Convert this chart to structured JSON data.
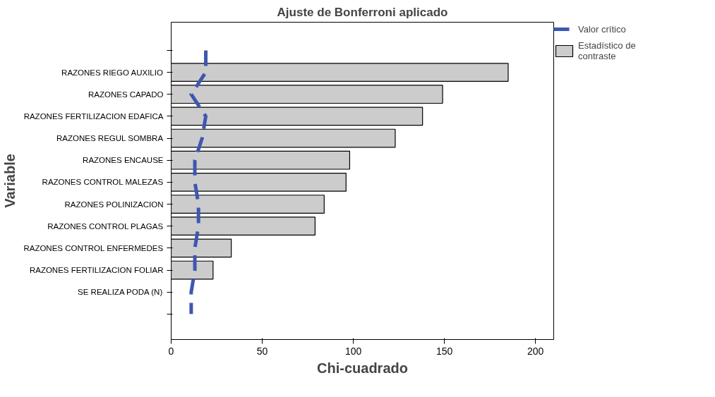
{
  "chart_data": {
    "type": "bar",
    "orientation": "horizontal",
    "title": "Ajuste de Bonferroni aplicado",
    "xlabel": "Chi-cuadrado",
    "ylabel": "Variable",
    "categories": [
      null,
      "RAZONES RIEGO AUXILIO",
      "RAZONES CAPADO",
      "RAZONES FERTILIZACION EDAFICA",
      "RAZONES REGUL SOMBRA",
      "RAZONES ENCAUSE",
      "RAZONES CONTROL MALEZAS",
      "RAZONES POLINIZACION",
      "RAZONES CONTROL PLAGAS",
      "RAZONES CONTROL ENFERMEDES",
      "RAZONES FERTILIZACION FOLIAR",
      "SE REALIZA PODA (N)",
      null
    ],
    "series": [
      {
        "name": "Valor crítico",
        "type": "line",
        "line_style": "dashed",
        "color": "#3f57b0",
        "values": [
          19,
          19,
          11,
          19,
          17,
          13,
          13,
          15,
          15,
          13,
          13,
          11,
          11
        ]
      },
      {
        "name": "Estadístico de contraste",
        "color": "#cccccc",
        "values": [
          null,
          185,
          149,
          138,
          123,
          98,
          96,
          84,
          79,
          33,
          23,
          null,
          null
        ]
      }
    ],
    "xlim": [
      0,
      210
    ],
    "xticks": [
      0,
      50,
      100,
      150,
      200
    ],
    "grid": false,
    "legend": "top right"
  }
}
